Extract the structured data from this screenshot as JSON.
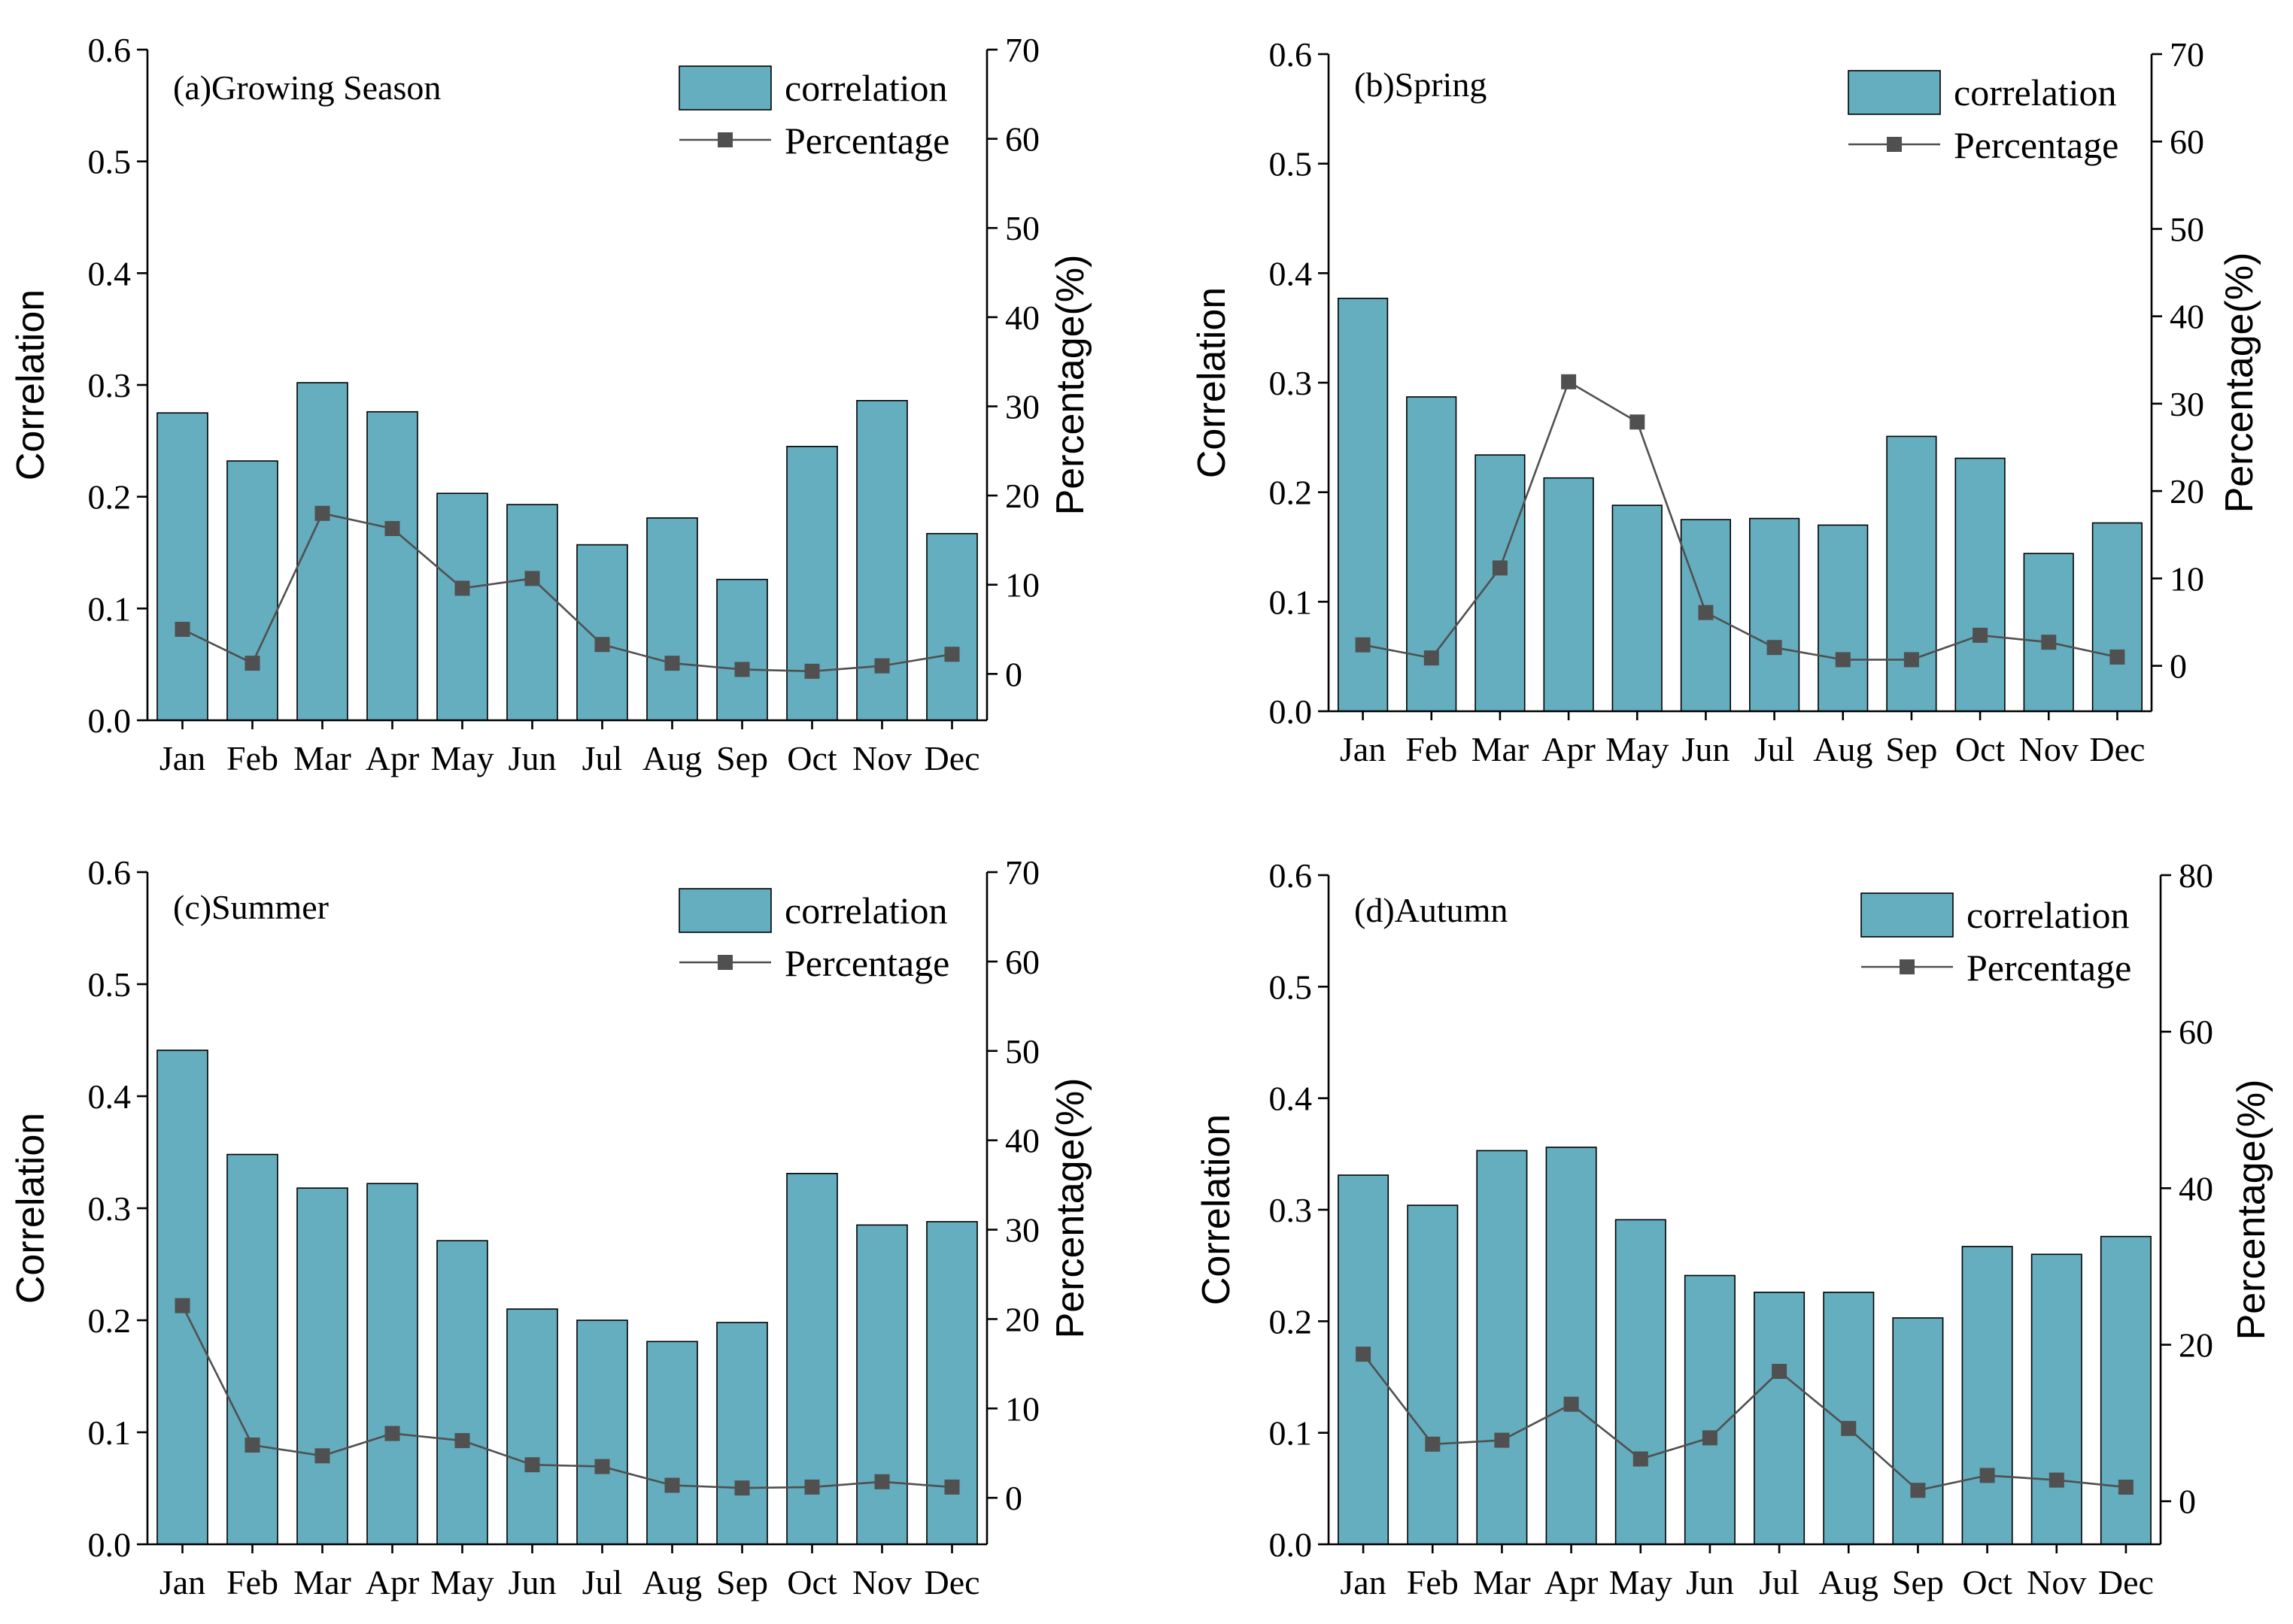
{
  "figure": {
    "bar_color": "#64AEBF",
    "line_color": "#505050",
    "legend": {
      "bar_label": "correlation",
      "line_label": "Percentage"
    }
  },
  "chart_data": [
    {
      "type": "bar",
      "title": "(a)Growing Season",
      "categories": [
        "Jan",
        "Feb",
        "Mar",
        "Apr",
        "May",
        "Jun",
        "Jul",
        "Aug",
        "Sep",
        "Oct",
        "Nov",
        "Dec"
      ],
      "ylabel": "Correlation",
      "y2label": "Percentage(%)",
      "ylim": [
        0,
        0.6
      ],
      "yticks": [
        0.0,
        0.1,
        0.2,
        0.3,
        0.4,
        0.5,
        0.6
      ],
      "ytick_labels": [
        "0.0",
        "0.1",
        "0.2",
        "0.3",
        "0.4",
        "0.5",
        "0.6"
      ],
      "y2lim": [
        -5.2,
        70
      ],
      "y2ticks": [
        0,
        10,
        20,
        30,
        40,
        50,
        60,
        70
      ],
      "y2tick_labels": [
        "0",
        "10",
        "20",
        "30",
        "40",
        "50",
        "60",
        "70"
      ],
      "series": [
        {
          "name": "correlation",
          "type": "bar",
          "axis": "left",
          "values": [
            0.275,
            0.232,
            0.302,
            0.276,
            0.203,
            0.193,
            0.157,
            0.181,
            0.126,
            0.245,
            0.286,
            0.167
          ]
        },
        {
          "name": "Percentage",
          "type": "line",
          "axis": "right",
          "values": [
            5.0,
            1.2,
            18.0,
            16.3,
            9.6,
            10.7,
            3.3,
            1.2,
            0.5,
            0.3,
            0.9,
            2.2
          ]
        }
      ]
    },
    {
      "type": "bar",
      "title": "(b)Spring",
      "categories": [
        "Jan",
        "Feb",
        "Mar",
        "Apr",
        "May",
        "Jun",
        "Jul",
        "Aug",
        "Sep",
        "Oct",
        "Nov",
        "Dec"
      ],
      "ylabel": "Correlation",
      "y2label": "Percentage(%)",
      "ylim": [
        0,
        0.6
      ],
      "yticks": [
        0.0,
        0.1,
        0.2,
        0.3,
        0.4,
        0.5,
        0.6
      ],
      "ytick_labels": [
        "0.0",
        "0.1",
        "0.2",
        "0.3",
        "0.4",
        "0.5",
        "0.6"
      ],
      "y2lim": [
        -5.2,
        70
      ],
      "y2ticks": [
        0,
        10,
        20,
        30,
        40,
        50,
        60,
        70
      ],
      "y2tick_labels": [
        "0",
        "10",
        "20",
        "30",
        "40",
        "50",
        "60",
        "70"
      ],
      "series": [
        {
          "name": "correlation",
          "type": "bar",
          "axis": "left",
          "values": [
            0.377,
            0.287,
            0.234,
            0.213,
            0.188,
            0.175,
            0.176,
            0.17,
            0.251,
            0.231,
            0.144,
            0.172
          ]
        },
        {
          "name": "Percentage",
          "type": "line",
          "axis": "right",
          "values": [
            2.4,
            0.9,
            11.2,
            32.5,
            27.9,
            6.1,
            2.1,
            0.7,
            0.7,
            3.5,
            2.7,
            1.0
          ]
        }
      ]
    },
    {
      "type": "bar",
      "title": "(c)Summer",
      "categories": [
        "Jan",
        "Feb",
        "Mar",
        "Apr",
        "May",
        "Jun",
        "Jul",
        "Aug",
        "Sep",
        "Oct",
        "Nov",
        "Dec"
      ],
      "ylabel": "Correlation",
      "y2label": "Percentage(%)",
      "ylim": [
        0,
        0.6
      ],
      "yticks": [
        0.0,
        0.1,
        0.2,
        0.3,
        0.4,
        0.5,
        0.6
      ],
      "ytick_labels": [
        "0.0",
        "0.1",
        "0.2",
        "0.3",
        "0.4",
        "0.5",
        "0.6"
      ],
      "y2lim": [
        -5.2,
        70
      ],
      "y2ticks": [
        0,
        10,
        20,
        30,
        40,
        50,
        60,
        70
      ],
      "y2tick_labels": [
        "0",
        "10",
        "20",
        "30",
        "40",
        "50",
        "60",
        "70"
      ],
      "series": [
        {
          "name": "correlation",
          "type": "bar",
          "axis": "left",
          "values": [
            0.441,
            0.348,
            0.318,
            0.322,
            0.271,
            0.21,
            0.2,
            0.181,
            0.198,
            0.331,
            0.285,
            0.288
          ]
        },
        {
          "name": "Percentage",
          "type": "line",
          "axis": "right",
          "values": [
            21.5,
            5.9,
            4.7,
            7.2,
            6.4,
            3.7,
            3.5,
            1.4,
            1.1,
            1.2,
            1.8,
            1.2
          ]
        }
      ]
    },
    {
      "type": "bar",
      "title": "(d)Autumn",
      "categories": [
        "Jan",
        "Feb",
        "Mar",
        "Apr",
        "May",
        "Jun",
        "Jul",
        "Aug",
        "Sep",
        "Oct",
        "Nov",
        "Dec"
      ],
      "ylabel": "Correlation",
      "y2label": "Percentage(%)",
      "ylim": [
        0,
        0.6
      ],
      "yticks": [
        0.0,
        0.1,
        0.2,
        0.3,
        0.4,
        0.5,
        0.6
      ],
      "ytick_labels": [
        "0.0",
        "0.1",
        "0.2",
        "0.3",
        "0.4",
        "0.5",
        "0.6"
      ],
      "y2lim": [
        -5.5,
        80
      ],
      "y2ticks": [
        0,
        20,
        40,
        60,
        80
      ],
      "y2tick_labels": [
        "0",
        "20",
        "40",
        "60",
        "80"
      ],
      "series": [
        {
          "name": "correlation",
          "type": "bar",
          "axis": "left",
          "values": [
            0.331,
            0.304,
            0.353,
            0.356,
            0.291,
            0.241,
            0.226,
            0.226,
            0.203,
            0.267,
            0.26,
            0.276
          ]
        },
        {
          "name": "Percentage",
          "type": "line",
          "axis": "right",
          "values": [
            18.8,
            7.3,
            7.8,
            12.4,
            5.4,
            8.1,
            16.6,
            9.3,
            1.4,
            3.3,
            2.7,
            1.8
          ]
        }
      ]
    }
  ]
}
